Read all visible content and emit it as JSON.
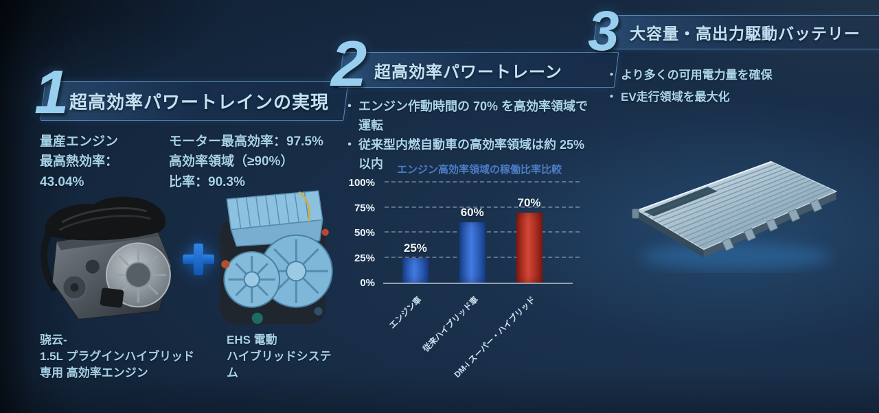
{
  "slide": {
    "bullet_char": "・",
    "sections": [
      {
        "number": "1",
        "title": "超高効率パワートレインの実現",
        "stats_left": [
          "量産エンジン",
          "最高熱効率：",
          "43.04%"
        ],
        "stats_right": [
          "モーター最高効率：97.5%",
          "高効率領域（≥90%）",
          "比率：90.3%"
        ],
        "caption_left": [
          "骁云-",
          "1.5L プラグインハイブリッド",
          "専用 高効率エンジン"
        ],
        "caption_right": [
          "EHS 電動",
          "ハイブリッドシステム"
        ]
      },
      {
        "number": "2",
        "title": "超高効率パワートレーン",
        "bullets": [
          "エンジン作動時間の 70% を高効率領域で運転",
          "従来型内燃自動車の高効率領域は約 25% 以内"
        ]
      },
      {
        "number": "3",
        "title": "大容量・高出力駆動バッテリー",
        "bullets": [
          "より多くの可用電力量を確保",
          "EV走行領域を最大化"
        ]
      }
    ],
    "icons": {
      "plus": "+"
    },
    "colors": {
      "accent_light_blue": "#98cfee",
      "title_blue": "#c2e2f4",
      "body_blue": "#a6d2e8",
      "chart_title_blue": "#4b7dc4",
      "background_navy": "#14273d"
    }
  },
  "chart_data": {
    "type": "bar",
    "title": "エンジン高効率領域の稼働比率比較",
    "categories": [
      "エンジン車",
      "従来ハイブリッド車",
      "DM-i スーパー・ハイブリッド"
    ],
    "values": [
      25,
      60,
      70
    ],
    "value_labels": [
      "25%",
      "60%",
      "70%"
    ],
    "xlabel": "",
    "ylabel": "",
    "ylim": [
      0,
      100
    ],
    "yticks": [
      0,
      25,
      50,
      75,
      100
    ],
    "ytick_labels": [
      "0%",
      "25%",
      "50%",
      "75%",
      "100%"
    ],
    "grid": "dashed-horizontal",
    "legend": "none",
    "bar_colors_hex": [
      "#2465dd",
      "#2465dd",
      "#cc2917"
    ]
  }
}
